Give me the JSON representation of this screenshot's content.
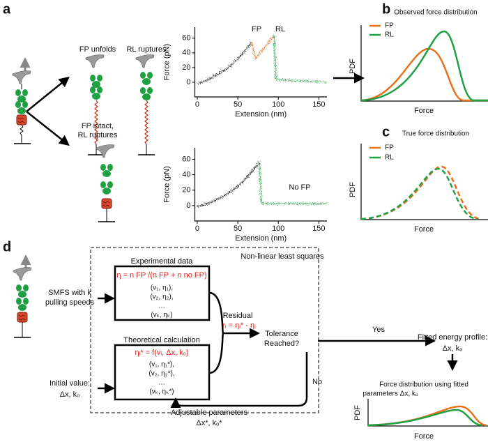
{
  "panel_a": {
    "label": "a",
    "state_unfold": "FP unfolds",
    "state_rupture": "RL ruptures",
    "state_intact": [
      "FP intact,",
      "RL ruptures"
    ],
    "plot_top": {
      "y_label": "Force (pN)",
      "x_label": "Extension (nm)",
      "xlim": [
        -3,
        160
      ],
      "ylim": [
        -20,
        75
      ],
      "xticks": [
        0,
        50,
        100,
        150
      ],
      "yticks": [
        0,
        20,
        40,
        60
      ],
      "annotations": [
        "FP",
        "RL"
      ]
    },
    "plot_bottom": {
      "y_label": "Force (pN)",
      "x_label": "Extension (nm)",
      "xlim": [
        -3,
        160
      ],
      "ylim": [
        -20,
        75
      ],
      "xticks": [
        0,
        50,
        100,
        150
      ],
      "yticks": [
        0,
        20,
        40,
        60
      ],
      "annotations": [
        "No FP"
      ]
    }
  },
  "panel_b": {
    "label": "b",
    "title": "Observed force distribution",
    "y_label": "PDF",
    "x_label": "Force",
    "legend": [
      {
        "name": "FP",
        "color": "#e8711c"
      },
      {
        "name": "RL",
        "color": "#1fa043"
      }
    ]
  },
  "panel_c": {
    "label": "c",
    "title": "True force distribution",
    "y_label": "PDF",
    "x_label": "Force",
    "legend": [
      {
        "name": "FP",
        "color": "#e8711c"
      },
      {
        "name": "RL",
        "color": "#1fa043"
      }
    ]
  },
  "panel_d": {
    "label": "d",
    "input_speeds": [
      "SMFS with k",
      "pulling speeds"
    ],
    "input_initial": [
      "Initial value:",
      "Δx, kₒ"
    ],
    "box_title": "Non-linear least squares",
    "experimental": {
      "title": "Experimental data",
      "formula": "η = n FP /(n FP + n no FP)",
      "items": [
        "(v₁, η₁),",
        "(v₂, η₂),",
        "…",
        "(vₖ, ηₖ)"
      ]
    },
    "theoretical": {
      "title": "Theoretical calculation",
      "formula": "ηᵢ* = f(vᵢ, Δx, kₒ)",
      "items": [
        "(v₁, η₁*),",
        "(v₂, η₂*),",
        "…",
        "(vₖ, ηₖ*)"
      ]
    },
    "residual": {
      "title": "Residual",
      "formula": "rᵢ = ηᵢ* - ηᵢ"
    },
    "tolerance": [
      "Tolerance",
      "Reached?"
    ],
    "yes": "Yes",
    "no": "No",
    "adjustable": [
      "Adjustable parameters",
      "Δx*, kₒ*"
    ],
    "fitted": [
      "Fitted energy profile:",
      "Δx, kₒ"
    ],
    "fitted_plot": {
      "title": [
        "Force distribution using fitted",
        "parameters Δx, kₒ"
      ],
      "y_label": "PDF",
      "x_label": "Force"
    }
  }
}
